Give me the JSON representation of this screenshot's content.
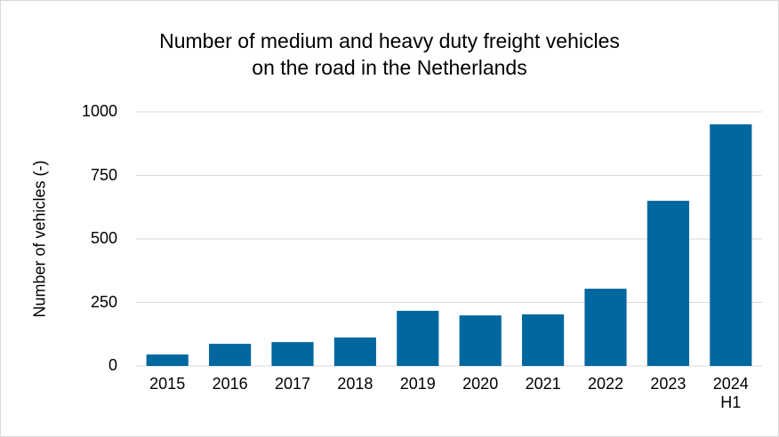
{
  "chart_data": {
    "type": "bar",
    "title": "Number of medium and heavy duty freight vehicles\non  the road in the Netherlands",
    "y_label": "Number of vehicles (-)",
    "categories": [
      "2015",
      "2016",
      "2017",
      "2018",
      "2019",
      "2020",
      "2021",
      "2022",
      "2023",
      "2024\nH1"
    ],
    "values": [
      45,
      87,
      94,
      112,
      217,
      199,
      203,
      304,
      650,
      951
    ],
    "color": "#00679f",
    "ylim": [
      0,
      1000
    ],
    "yticks": [
      0,
      250,
      500,
      750,
      1000
    ],
    "grid": true
  }
}
